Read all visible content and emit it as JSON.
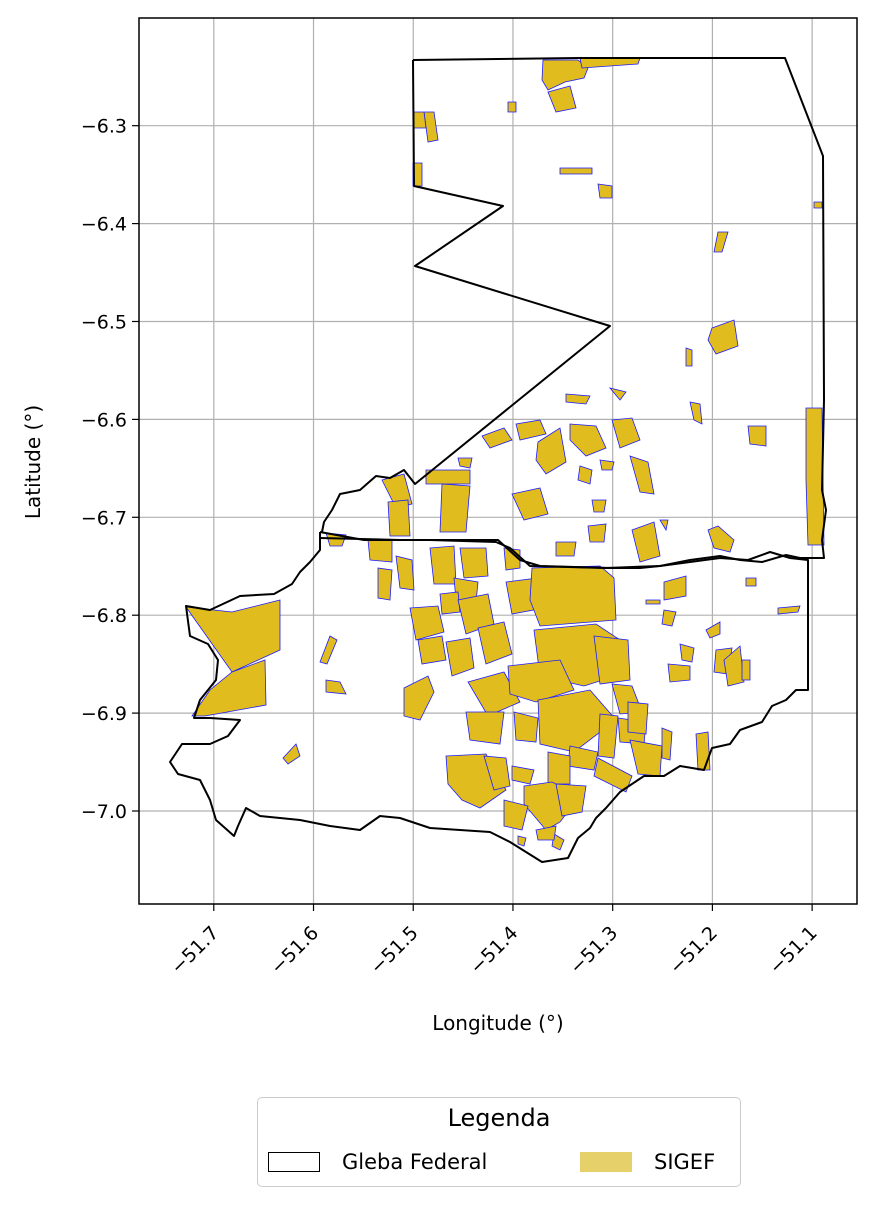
{
  "map": {
    "xlabel": "Longitude (°)",
    "ylabel": "Latitude (°)",
    "xlim": [
      -51.775,
      -51.055
    ],
    "ylim": [
      -7.095,
      -6.19
    ],
    "xticks": [
      -51.7,
      -51.6,
      -51.5,
      -51.4,
      -51.3,
      -51.2,
      -51.1
    ],
    "yticks": [
      -6.3,
      -6.4,
      -6.5,
      -6.6,
      -6.7,
      -6.8,
      -6.9,
      -7.0
    ],
    "xtick_labels": [
      "−51.7",
      "−51.6",
      "−51.5",
      "−51.4",
      "−51.3",
      "−51.2",
      "−51.1"
    ],
    "ytick_labels": [
      "−6.3",
      "−6.4",
      "−6.5",
      "−6.6",
      "−6.7",
      "−6.8",
      "−6.9",
      "−7.0"
    ],
    "grid": true,
    "colors": {
      "gleba_edge": "#000000",
      "sigef_fill": "#e0bc1f",
      "sigef_edge": "#1c1cff",
      "grid": "#b0b0b0"
    }
  },
  "legend": {
    "title": "Legenda",
    "placement": "below",
    "items": [
      {
        "label": "Gleba Federal",
        "swatch": "outline"
      },
      {
        "label": "SIGEF",
        "swatch": "fill",
        "color": "#e6d06a"
      }
    ]
  }
}
